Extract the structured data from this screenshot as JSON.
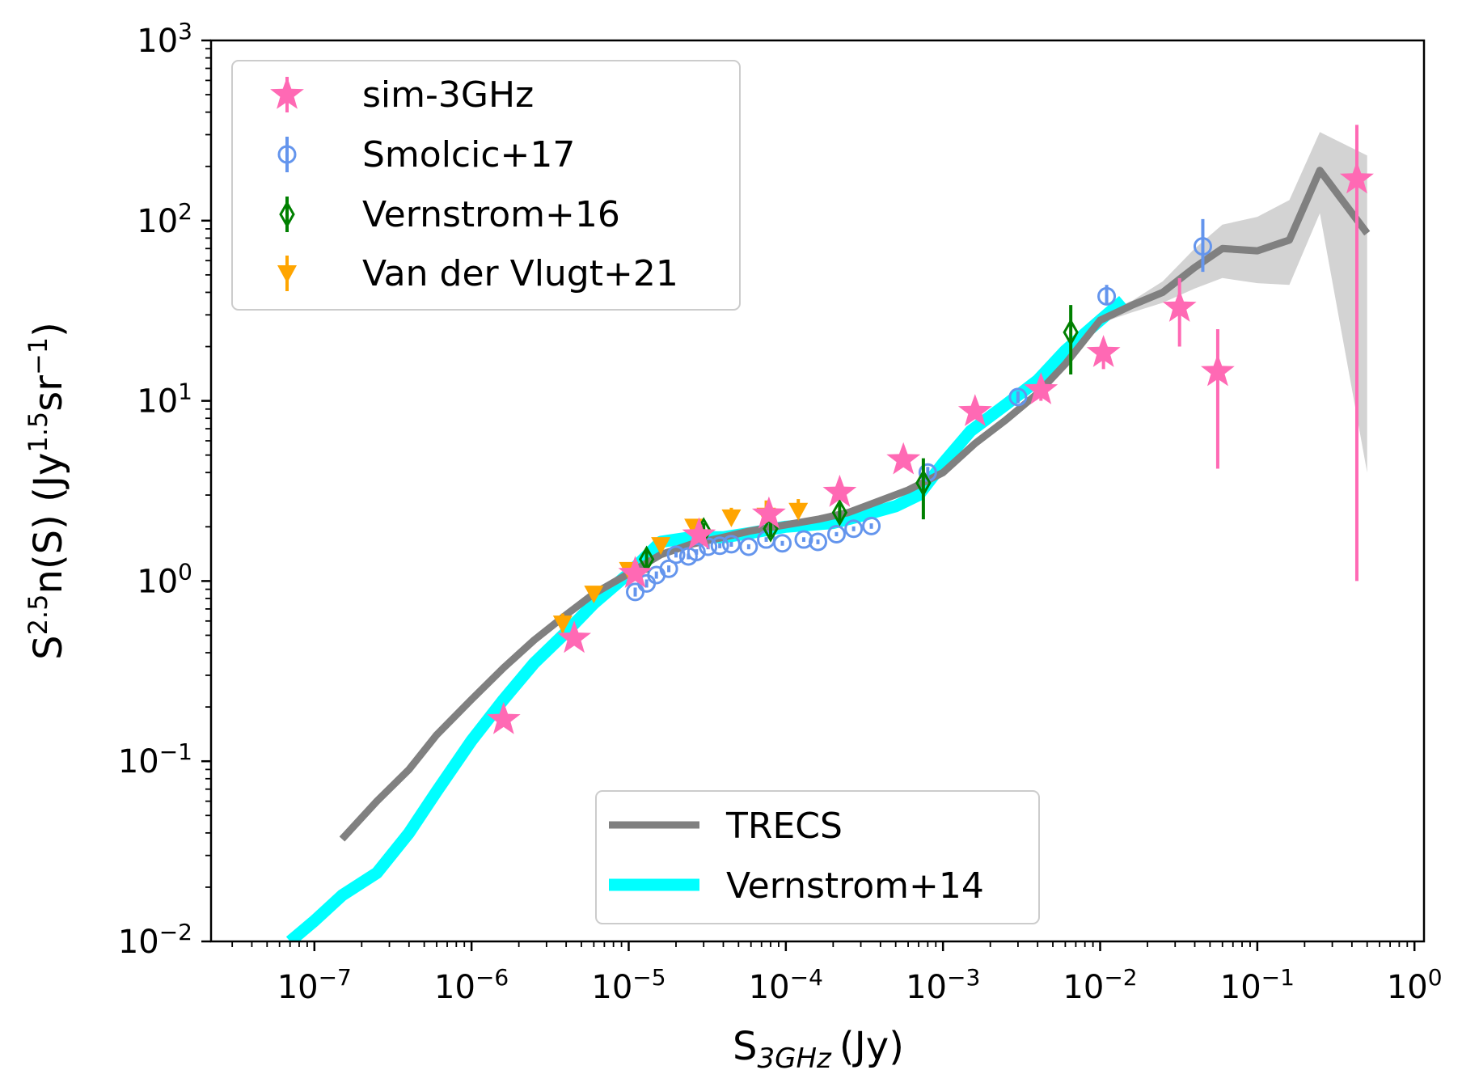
{
  "chart_data": {
    "type": "scatter",
    "title": "",
    "xscale": "log",
    "yscale": "log",
    "xlim": [
      2.2e-08,
      1.15
    ],
    "ylim": [
      0.01,
      1000
    ],
    "xlabel": {
      "main": "S",
      "sub": "3GHz",
      "unit": "(Jy)"
    },
    "ylabel": {
      "prefix": "S",
      "sup1": "2.5",
      "mid": "n(S) (Jy",
      "sup2": "1.5",
      "mid2": "sr",
      "sup3": "−1",
      "suffix": ")"
    },
    "xticks": [
      {
        "base": "10",
        "exp": "−7",
        "value": 1e-07
      },
      {
        "base": "10",
        "exp": "−6",
        "value": 1e-06
      },
      {
        "base": "10",
        "exp": "−5",
        "value": 1e-05
      },
      {
        "base": "10",
        "exp": "−4",
        "value": 0.0001
      },
      {
        "base": "10",
        "exp": "−3",
        "value": 0.001
      },
      {
        "base": "10",
        "exp": "−2",
        "value": 0.01
      },
      {
        "base": "10",
        "exp": "−1",
        "value": 0.1
      },
      {
        "base": "10",
        "exp": "0",
        "value": 1
      }
    ],
    "yticks": [
      {
        "base": "10",
        "exp": "−2",
        "value": 0.01
      },
      {
        "base": "10",
        "exp": "−1",
        "value": 0.1
      },
      {
        "base": "10",
        "exp": "0",
        "value": 1
      },
      {
        "base": "10",
        "exp": "1",
        "value": 10
      },
      {
        "base": "10",
        "exp": "2",
        "value": 100
      },
      {
        "base": "10",
        "exp": "3",
        "value": 1000
      }
    ],
    "legend_top": {
      "placement": "top-left",
      "entries": [
        {
          "label": "sim-3GHz",
          "series": "sim"
        },
        {
          "label": "Smolcic+17",
          "series": "smolcic"
        },
        {
          "label": "Vernstrom+16",
          "series": "vern16"
        },
        {
          "label": "Van der Vlugt+21",
          "series": "vlugt"
        }
      ]
    },
    "legend_bottom": {
      "placement": "lower-center",
      "entries": [
        {
          "label": "TRECS",
          "series": "trecs"
        },
        {
          "label": "Vernstrom+14",
          "series": "vern14"
        }
      ]
    },
    "colors": {
      "sim": "#ff69b4",
      "smolcic": "#6495ed",
      "vern16": "#008000",
      "vlugt": "#ffa500",
      "trecs": "#808080",
      "trecs_band": "#d3d3d3",
      "vern14": "#00ffff"
    },
    "series": [
      {
        "name": "Vernstrom+14",
        "key": "vern14",
        "kind": "line",
        "x": [
          7e-08,
          1e-07,
          1.5e-07,
          2.5e-07,
          4e-07,
          6e-07,
          1e-06,
          1.6e-06,
          2.5e-06,
          4e-06,
          6e-06,
          1e-05,
          1.6e-05,
          2.5e-05,
          4e-05,
          6e-05,
          0.0001,
          0.0002,
          0.0003,
          0.0005,
          0.0007,
          0.001,
          0.0015,
          0.0025,
          0.004,
          0.006,
          0.01,
          0.014
        ],
        "y": [
          0.01,
          0.013,
          0.018,
          0.024,
          0.04,
          0.068,
          0.13,
          0.22,
          0.35,
          0.52,
          0.75,
          1.1,
          1.65,
          1.75,
          1.75,
          1.85,
          2.0,
          2.1,
          2.3,
          2.6,
          3.0,
          4.5,
          6.8,
          9.5,
          13.0,
          19.0,
          28.0,
          36.0
        ]
      },
      {
        "name": "TRECS",
        "key": "trecs",
        "kind": "line",
        "x": [
          1.5e-07,
          2.5e-07,
          4e-07,
          6e-07,
          1e-06,
          1.6e-06,
          2.5e-06,
          4e-06,
          6e-06,
          1e-05,
          1.6e-05,
          2.5e-05,
          4e-05,
          6e-05,
          0.0001,
          0.00016,
          0.00025,
          0.0004,
          0.0006,
          0.001,
          0.0016,
          0.0025,
          0.004,
          0.006,
          0.01,
          0.016,
          0.025,
          0.04,
          0.06,
          0.1,
          0.16,
          0.25,
          0.5
        ],
        "y": [
          0.037,
          0.06,
          0.09,
          0.14,
          0.22,
          0.33,
          0.47,
          0.65,
          0.85,
          1.1,
          1.4,
          1.6,
          1.75,
          1.9,
          2.05,
          2.2,
          2.4,
          2.8,
          3.2,
          4.0,
          5.8,
          7.8,
          11.0,
          16.0,
          28.0,
          34.0,
          40.0,
          55.0,
          70.0,
          68.0,
          78.0,
          190.0,
          85.0
        ]
      },
      {
        "name": "TRECS band",
        "key": "trecs_band",
        "kind": "band",
        "x": [
          0.01,
          0.016,
          0.025,
          0.04,
          0.06,
          0.1,
          0.16,
          0.25,
          0.5
        ],
        "y_low": [
          27.0,
          31.0,
          35.0,
          42.0,
          48.0,
          45.0,
          44.0,
          110.0,
          4.0
        ],
        "y_high": [
          30.0,
          36.0,
          46.0,
          70.0,
          95.0,
          105.0,
          130.0,
          310.0,
          230.0
        ]
      },
      {
        "name": "Smolcic+17",
        "key": "smolcic",
        "kind": "points",
        "marker": "circle-open",
        "x": [
          1.1e-05,
          1.3e-05,
          1.5e-05,
          1.8e-05,
          2e-05,
          2.4e-05,
          2.7e-05,
          3.2e-05,
          3.8e-05,
          4.5e-05,
          5.8e-05,
          7.5e-05,
          9.5e-05,
          0.00013,
          0.00016,
          0.00021,
          0.00027,
          0.00035,
          0.0008,
          0.003,
          0.011,
          0.045
        ],
        "y": [
          0.87,
          0.97,
          1.08,
          1.17,
          1.4,
          1.37,
          1.45,
          1.55,
          1.57,
          1.6,
          1.55,
          1.7,
          1.62,
          1.7,
          1.65,
          1.82,
          1.95,
          2.02,
          4.0,
          10.5,
          38.0,
          72.0
        ],
        "err_low": [
          0.05,
          0.05,
          0.05,
          0.05,
          0.05,
          0.05,
          0.05,
          0.05,
          0.05,
          0.05,
          0.05,
          0.05,
          0.05,
          0.05,
          0.05,
          0.05,
          0.06,
          0.07,
          0.3,
          0.8,
          4.0,
          20.0
        ],
        "err_high": [
          0.05,
          0.05,
          0.05,
          0.05,
          0.05,
          0.05,
          0.05,
          0.05,
          0.05,
          0.05,
          0.05,
          0.05,
          0.05,
          0.05,
          0.05,
          0.05,
          0.06,
          0.07,
          0.3,
          0.8,
          6.0,
          30.0
        ]
      },
      {
        "name": "Vernstrom+16",
        "key": "vern16",
        "kind": "points",
        "marker": "diamond-open",
        "x": [
          1.3e-05,
          3e-05,
          8e-05,
          0.00022,
          0.00075,
          0.0065
        ],
        "y": [
          1.32,
          1.9,
          1.95,
          2.4,
          3.5,
          24.0
        ],
        "err_low": [
          0.2,
          0.2,
          0.2,
          0.3,
          1.3,
          10.0
        ],
        "err_high": [
          0.2,
          0.2,
          0.2,
          0.3,
          1.3,
          10.0
        ]
      },
      {
        "name": "Van der Vlugt+21",
        "key": "vlugt",
        "kind": "points",
        "marker": "triangle-down",
        "x": [
          3.8e-06,
          6e-06,
          1e-05,
          1.6e-05,
          2.6e-05,
          4.5e-05,
          7.5e-05,
          0.00012
        ],
        "y": [
          0.58,
          0.85,
          1.15,
          1.58,
          2.0,
          2.25,
          2.3,
          2.45
        ],
        "err_low": [
          0.06,
          0.05,
          0.05,
          0.06,
          0.08,
          0.1,
          0.12,
          0.15
        ],
        "err_high": [
          0.08,
          0.05,
          0.05,
          0.06,
          0.12,
          0.3,
          0.5,
          0.4
        ]
      },
      {
        "name": "sim-3GHz",
        "key": "sim",
        "kind": "points",
        "marker": "star",
        "x": [
          1.6e-06,
          4.5e-06,
          1.1e-05,
          2.8e-05,
          7.8e-05,
          0.00022,
          0.00056,
          0.0016,
          0.0042,
          0.0105,
          0.032,
          0.056,
          0.43
        ],
        "y": [
          0.17,
          0.48,
          1.1,
          1.8,
          2.35,
          3.1,
          4.7,
          8.7,
          11.5,
          18.5,
          33.0,
          14.5,
          170.0
        ],
        "err_low": [
          0.01,
          0.03,
          0.05,
          0.08,
          0.1,
          0.15,
          0.3,
          0.8,
          1.5,
          3.5,
          13.0,
          10.3,
          169.0
        ],
        "err_high": [
          0.01,
          0.03,
          0.05,
          0.08,
          0.1,
          0.15,
          0.3,
          0.8,
          1.5,
          3.5,
          15.0,
          10.5,
          170.0
        ]
      }
    ]
  }
}
